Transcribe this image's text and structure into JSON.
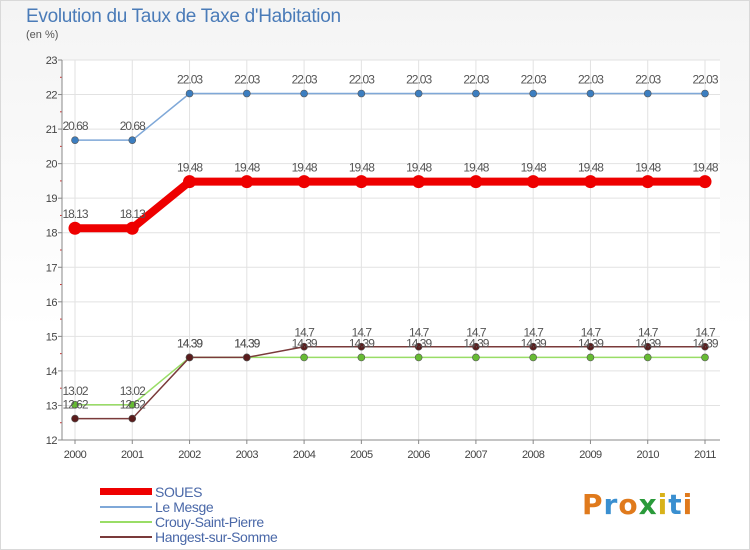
{
  "header": {
    "title": "Evolution du Taux de Taxe d'Habitation",
    "subtitle": "(en %)"
  },
  "logo": {
    "text": "Proxiti"
  },
  "chart_data": {
    "type": "line",
    "title": "Evolution du Taux de Taxe d'Habitation",
    "ylabel": "(en %)",
    "xlabel": "",
    "x": [
      "2000",
      "2001",
      "2002",
      "2003",
      "2004",
      "2005",
      "2006",
      "2007",
      "2008",
      "2009",
      "2010",
      "2011"
    ],
    "ylim": [
      12,
      23
    ],
    "yticks": [
      "12",
      "13",
      "14",
      "15",
      "16",
      "17",
      "18",
      "19",
      "20",
      "21",
      "22",
      "23"
    ],
    "grid": true,
    "legend_position": "bottom",
    "series": [
      {
        "name": "SOUES",
        "color": "#ee0000",
        "values": [
          18.13,
          18.13,
          19.48,
          19.48,
          19.48,
          19.48,
          19.48,
          19.48,
          19.48,
          19.48,
          19.48,
          19.48
        ],
        "labels": [
          "18.13",
          "18.13",
          "19.48",
          "19.48",
          "19.48",
          "19.48",
          "19.48",
          "19.48",
          "19.48",
          "19.48",
          "19.48",
          "19.48"
        ]
      },
      {
        "name": "Le Mesge",
        "color": "#7fa8d8",
        "values": [
          20.68,
          20.68,
          22.03,
          22.03,
          22.03,
          22.03,
          22.03,
          22.03,
          22.03,
          22.03,
          22.03,
          22.03
        ],
        "labels": [
          "20.68",
          "20.68",
          "22.03",
          "22.03",
          "22.03",
          "22.03",
          "22.03",
          "22.03",
          "22.03",
          "22.03",
          "22.03",
          "22.03"
        ]
      },
      {
        "name": "Crouy-Saint-Pierre",
        "color": "#99dd66",
        "values": [
          13.02,
          13.02,
          14.39,
          14.39,
          14.39,
          14.39,
          14.39,
          14.39,
          14.39,
          14.39,
          14.39,
          14.39
        ],
        "labels": [
          "13.02",
          "13.02",
          "14.39",
          "14.39",
          "14.39",
          "14.39",
          "14.39",
          "14.39",
          "14.39",
          "14.39",
          "14.39",
          "14.39"
        ]
      },
      {
        "name": "Hangest-sur-Somme",
        "color": "#7a3a3a",
        "values": [
          12.62,
          12.62,
          14.39,
          14.39,
          14.7,
          14.7,
          14.7,
          14.7,
          14.7,
          14.7,
          14.7,
          14.7
        ],
        "labels": [
          "12.62",
          "12.62",
          "14.39",
          "14.39",
          "14.7",
          "14.7",
          "14.7",
          "14.7",
          "14.7",
          "14.7",
          "14.7",
          "14.7"
        ]
      }
    ]
  }
}
